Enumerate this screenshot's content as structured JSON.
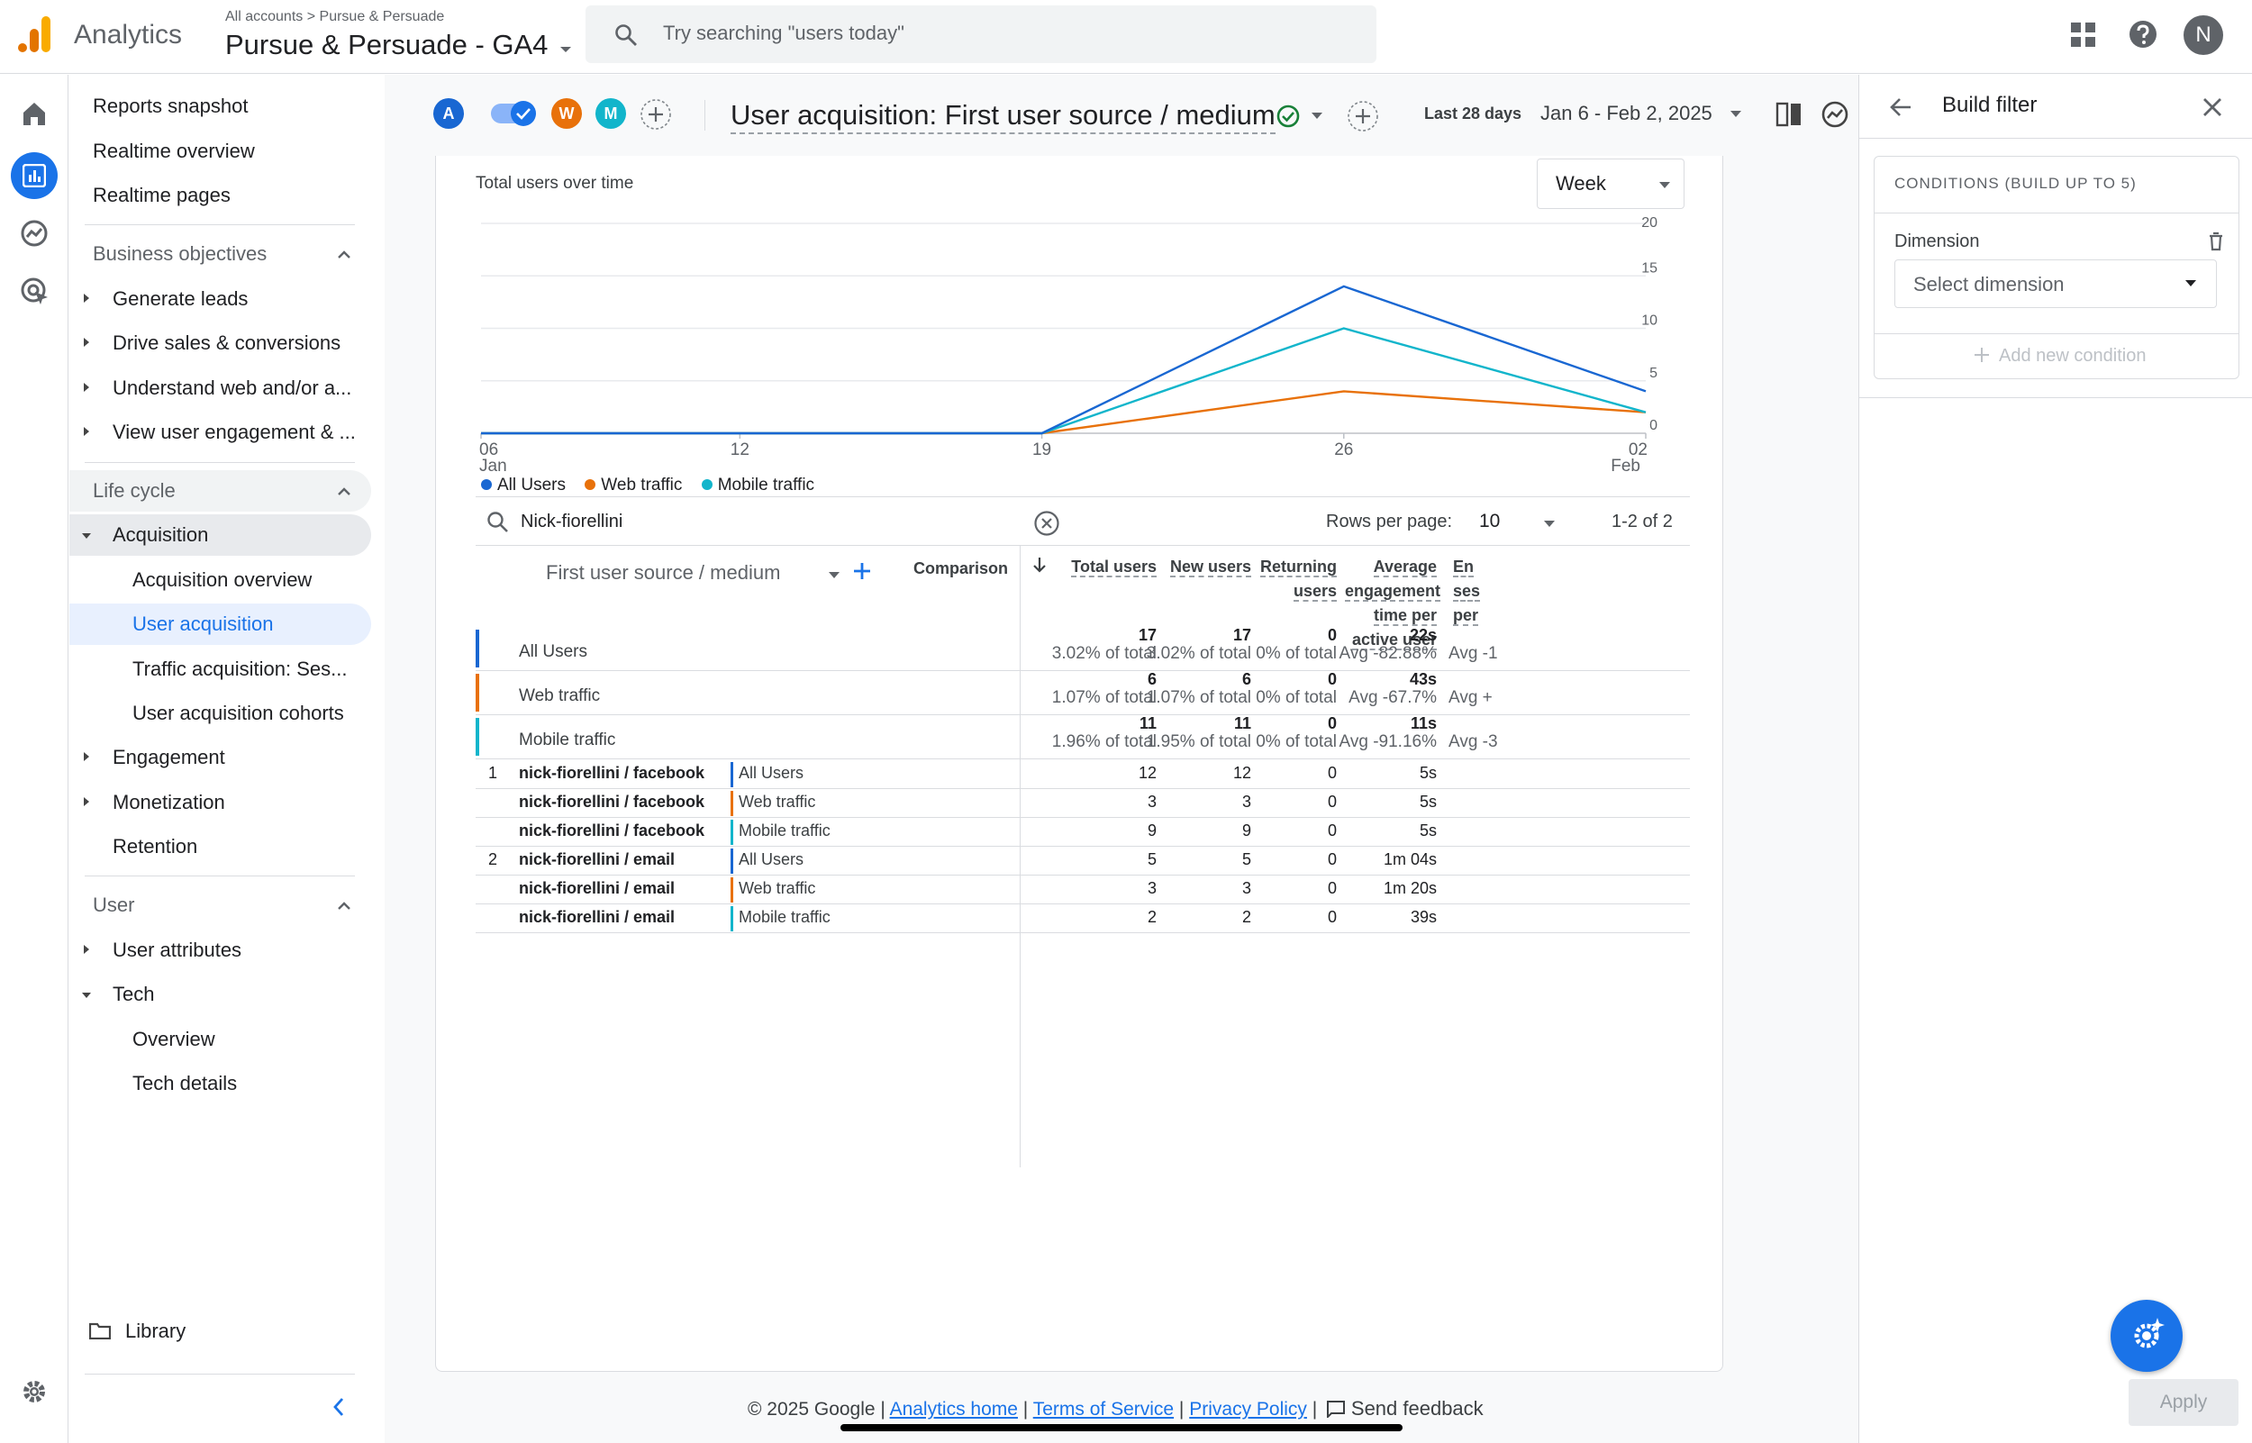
{
  "header": {
    "app_name": "Analytics",
    "breadcrumb_all": "All accounts",
    "breadcrumb_sep": ">",
    "breadcrumb_account": "Pursue & Persuade",
    "property": "Pursue & Persuade - GA4",
    "search_placeholder": "Try searching \"users today\"",
    "avatar_letter": "N"
  },
  "nav": {
    "top": [
      "Reports snapshot",
      "Realtime overview",
      "Realtime pages"
    ],
    "business_title": "Business objectives",
    "business_items": [
      "Generate leads",
      "Drive sales & conversions",
      "Understand web and/or a...",
      "View user engagement & ..."
    ],
    "lifecycle_title": "Life cycle",
    "acquisition": "Acquisition",
    "acquisition_items": [
      "Acquisition overview",
      "User acquisition",
      "Traffic acquisition: Ses...",
      "User acquisition cohorts"
    ],
    "engagement": "Engagement",
    "monetization": "Monetization",
    "retention": "Retention",
    "user_title": "User",
    "user_attributes": "User attributes",
    "tech": "Tech",
    "tech_items": [
      "Overview",
      "Tech details"
    ],
    "library": "Library"
  },
  "report": {
    "comparison_chips": [
      "A",
      "W",
      "M"
    ],
    "title": "User acquisition: First user source / medium",
    "date_label": "Last 28 days",
    "date_range": "Jan 6 - Feb 2, 2025"
  },
  "chart": {
    "heading": "Total users over time",
    "interval": "Week"
  },
  "chart_data": {
    "type": "line",
    "title": "Total users over time",
    "x": [
      "06 Jan",
      "12",
      "19",
      "26",
      "02 Feb"
    ],
    "x_tick_labels": [
      [
        "06",
        "Jan"
      ],
      [
        "12",
        ""
      ],
      [
        "19",
        ""
      ],
      [
        "26",
        ""
      ],
      [
        "02",
        "Feb"
      ]
    ],
    "x_positions_days": [
      0,
      6,
      13,
      20,
      27
    ],
    "y_ticks": [
      0,
      5,
      10,
      15,
      20
    ],
    "ylim": [
      0,
      20
    ],
    "y_axis_position": "right",
    "grid": true,
    "legend_position": "bottom-left",
    "series": [
      {
        "name": "All Users",
        "color": "#1967d2",
        "values": [
          0,
          0,
          0,
          14,
          4
        ]
      },
      {
        "name": "Web traffic",
        "color": "#e8710a",
        "values": [
          0,
          0,
          0,
          4,
          2
        ]
      },
      {
        "name": "Mobile traffic",
        "color": "#12b5cb",
        "values": [
          0,
          0,
          0,
          10,
          2
        ]
      }
    ]
  },
  "table": {
    "search_value": "Nick-fiorellini",
    "rows_per_page_label": "Rows per page:",
    "rows_per_page": "10",
    "pagination": "1-2 of 2",
    "dimension_header": "First user source / medium",
    "comparison_header": "Comparison",
    "metric_headers": [
      [
        "Total users"
      ],
      [
        "New users"
      ],
      [
        "Returning",
        "users"
      ],
      [
        "Average",
        "engagement",
        "time per",
        "active user"
      ],
      [
        "En",
        "ses",
        "per"
      ]
    ],
    "totals": [
      {
        "label": "All Users",
        "color": "#1967d2",
        "cells": [
          [
            "17",
            "3.02% of total"
          ],
          [
            "17",
            "3.02% of total"
          ],
          [
            "0",
            "0% of total"
          ],
          [
            "22s",
            "Avg -82.88%"
          ],
          [
            "",
            "Avg -1"
          ]
        ]
      },
      {
        "label": "Web traffic",
        "color": "#e8710a",
        "cells": [
          [
            "6",
            "1.07% of total"
          ],
          [
            "6",
            "1.07% of total"
          ],
          [
            "0",
            "0% of total"
          ],
          [
            "43s",
            "Avg -67.7%"
          ],
          [
            "",
            "Avg +"
          ]
        ]
      },
      {
        "label": "Mobile traffic",
        "color": "#12b5cb",
        "cells": [
          [
            "11",
            "1.96% of total"
          ],
          [
            "11",
            "1.95% of total"
          ],
          [
            "0",
            "0% of total"
          ],
          [
            "11s",
            "Avg -91.16%"
          ],
          [
            "",
            "Avg -3"
          ]
        ]
      }
    ],
    "rows": [
      {
        "index": "1",
        "dimension": "nick-fiorellini / facebook",
        "comparison": "All Users",
        "color": "#1967d2",
        "values": [
          "12",
          "12",
          "0",
          "5s"
        ]
      },
      {
        "index": "",
        "dimension": "nick-fiorellini / facebook",
        "comparison": "Web traffic",
        "color": "#e8710a",
        "values": [
          "3",
          "3",
          "0",
          "5s"
        ]
      },
      {
        "index": "",
        "dimension": "nick-fiorellini / facebook",
        "comparison": "Mobile traffic",
        "color": "#12b5cb",
        "values": [
          "9",
          "9",
          "0",
          "5s"
        ]
      },
      {
        "index": "2",
        "dimension": "nick-fiorellini / email",
        "comparison": "All Users",
        "color": "#1967d2",
        "values": [
          "5",
          "5",
          "0",
          "1m 04s"
        ]
      },
      {
        "index": "",
        "dimension": "nick-fiorellini / email",
        "comparison": "Web traffic",
        "color": "#e8710a",
        "values": [
          "3",
          "3",
          "0",
          "1m 20s"
        ]
      },
      {
        "index": "",
        "dimension": "nick-fiorellini / email",
        "comparison": "Mobile traffic",
        "color": "#12b5cb",
        "values": [
          "2",
          "2",
          "0",
          "39s"
        ]
      }
    ]
  },
  "panel": {
    "title": "Build filter",
    "conditions_label": "CONDITIONS (BUILD UP TO 5)",
    "dimension_label": "Dimension",
    "select_placeholder": "Select dimension",
    "add_condition": "Add new condition",
    "apply": "Apply"
  },
  "footer": {
    "copyright": "© 2025 Google |",
    "links": [
      "Analytics home",
      "Terms of Service",
      "Privacy Policy"
    ],
    "send_feedback": "Send feedback"
  },
  "colors": {
    "accent": "#1a73e8",
    "selected_bg": "#e8f0fe",
    "chip_a": "#1967d2",
    "chip_w": "#e8710a",
    "chip_m": "#12b5cb",
    "logo_orange": "#f9ab00",
    "logo_dark": "#e37400"
  }
}
